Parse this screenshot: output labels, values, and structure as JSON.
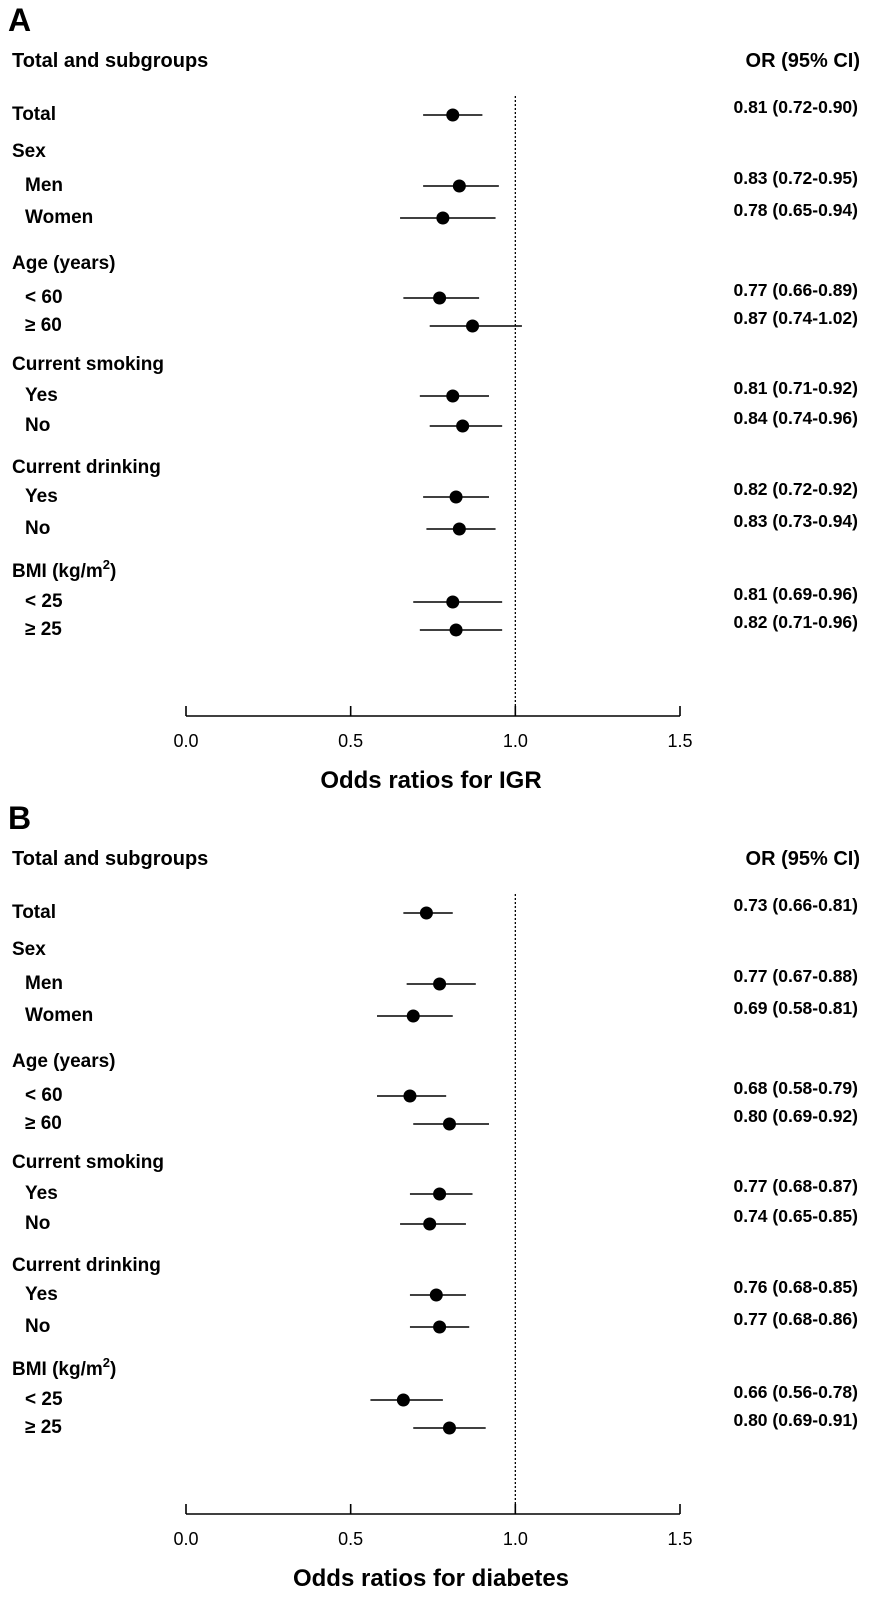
{
  "chart_data": [
    {
      "type": "forest",
      "panel_label": "A",
      "left_header": "Total and subgroups",
      "right_header": "OR (95% CI)",
      "xlabel": "Odds ratios for IGR",
      "xlim": [
        0.0,
        1.5
      ],
      "xticks": [
        "0.0",
        "0.5",
        "1.0",
        "1.5"
      ],
      "reference_line": 1.0,
      "rows": [
        {
          "label": "Total",
          "level": 0,
          "or": 0.81,
          "lo": 0.72,
          "hi": 0.9,
          "ci_text": "0.81 (0.72-0.90)"
        },
        {
          "label": "Sex",
          "level": 0,
          "heading": true
        },
        {
          "label": "Men",
          "level": 1,
          "or": 0.83,
          "lo": 0.72,
          "hi": 0.95,
          "ci_text": "0.83 (0.72-0.95)"
        },
        {
          "label": "Women",
          "level": 1,
          "or": 0.78,
          "lo": 0.65,
          "hi": 0.94,
          "ci_text": "0.78 (0.65-0.94)"
        },
        {
          "label": "Age (years)",
          "level": 0,
          "heading": true
        },
        {
          "label": "<  60",
          "level": 1,
          "or": 0.77,
          "lo": 0.66,
          "hi": 0.89,
          "ci_text": "0.77 (0.66-0.89)"
        },
        {
          "label": "≥  60",
          "level": 1,
          "or": 0.87,
          "lo": 0.74,
          "hi": 1.02,
          "ci_text": "0.87 (0.74-1.02)"
        },
        {
          "label": "Current smoking",
          "level": 0,
          "heading": true
        },
        {
          "label": "Yes",
          "level": 1,
          "or": 0.81,
          "lo": 0.71,
          "hi": 0.92,
          "ci_text": "0.81 (0.71-0.92)"
        },
        {
          "label": "No",
          "level": 1,
          "or": 0.84,
          "lo": 0.74,
          "hi": 0.96,
          "ci_text": "0.84 (0.74-0.96)"
        },
        {
          "label": "Current drinking",
          "level": 0,
          "heading": true
        },
        {
          "label": "Yes",
          "level": 1,
          "or": 0.82,
          "lo": 0.72,
          "hi": 0.92,
          "ci_text": "0.82 (0.72-0.92)"
        },
        {
          "label": "No",
          "level": 1,
          "or": 0.83,
          "lo": 0.73,
          "hi": 0.94,
          "ci_text": "0.83 (0.73-0.94)"
        },
        {
          "label": "BMI (kg/m²)",
          "level": 0,
          "heading": true
        },
        {
          "label": "<  25",
          "level": 1,
          "or": 0.81,
          "lo": 0.69,
          "hi": 0.96,
          "ci_text": "0.81 (0.69-0.96)"
        },
        {
          "label": "≥  25",
          "level": 1,
          "or": 0.82,
          "lo": 0.71,
          "hi": 0.96,
          "ci_text": "0.82 (0.71-0.96)"
        }
      ]
    },
    {
      "type": "forest",
      "panel_label": "B",
      "left_header": "Total and subgroups",
      "right_header": "OR (95% CI)",
      "xlabel": "Odds ratios for diabetes",
      "xlim": [
        0.0,
        1.5
      ],
      "xticks": [
        "0.0",
        "0.5",
        "1.0",
        "1.5"
      ],
      "reference_line": 1.0,
      "rows": [
        {
          "label": "Total",
          "level": 0,
          "or": 0.73,
          "lo": 0.66,
          "hi": 0.81,
          "ci_text": "0.73 (0.66-0.81)"
        },
        {
          "label": "Sex",
          "level": 0,
          "heading": true
        },
        {
          "label": "Men",
          "level": 1,
          "or": 0.77,
          "lo": 0.67,
          "hi": 0.88,
          "ci_text": "0.77 (0.67-0.88)"
        },
        {
          "label": "Women",
          "level": 1,
          "or": 0.69,
          "lo": 0.58,
          "hi": 0.81,
          "ci_text": "0.69 (0.58-0.81)"
        },
        {
          "label": "Age (years)",
          "level": 0,
          "heading": true
        },
        {
          "label": "<  60",
          "level": 1,
          "or": 0.68,
          "lo": 0.58,
          "hi": 0.79,
          "ci_text": "0.68 (0.58-0.79)"
        },
        {
          "label": "≥  60",
          "level": 1,
          "or": 0.8,
          "lo": 0.69,
          "hi": 0.92,
          "ci_text": "0.80 (0.69-0.92)"
        },
        {
          "label": "Current smoking",
          "level": 0,
          "heading": true
        },
        {
          "label": "Yes",
          "level": 1,
          "or": 0.77,
          "lo": 0.68,
          "hi": 0.87,
          "ci_text": "0.77 (0.68-0.87)"
        },
        {
          "label": "No",
          "level": 1,
          "or": 0.74,
          "lo": 0.65,
          "hi": 0.85,
          "ci_text": "0.74 (0.65-0.85)"
        },
        {
          "label": "Current drinking",
          "level": 0,
          "heading": true
        },
        {
          "label": "Yes",
          "level": 1,
          "or": 0.76,
          "lo": 0.68,
          "hi": 0.85,
          "ci_text": "0.76 (0.68-0.85)"
        },
        {
          "label": "No",
          "level": 1,
          "or": 0.77,
          "lo": 0.68,
          "hi": 0.86,
          "ci_text": "0.77 (0.68-0.86)"
        },
        {
          "label": "BMI (kg/m²)",
          "level": 0,
          "heading": true
        },
        {
          "label": "<  25",
          "level": 1,
          "or": 0.66,
          "lo": 0.56,
          "hi": 0.78,
          "ci_text": "0.66 (0.56-0.78)"
        },
        {
          "label": "≥  25",
          "level": 1,
          "or": 0.8,
          "lo": 0.69,
          "hi": 0.91,
          "ci_text": "0.80 (0.69-0.91)"
        }
      ]
    }
  ]
}
